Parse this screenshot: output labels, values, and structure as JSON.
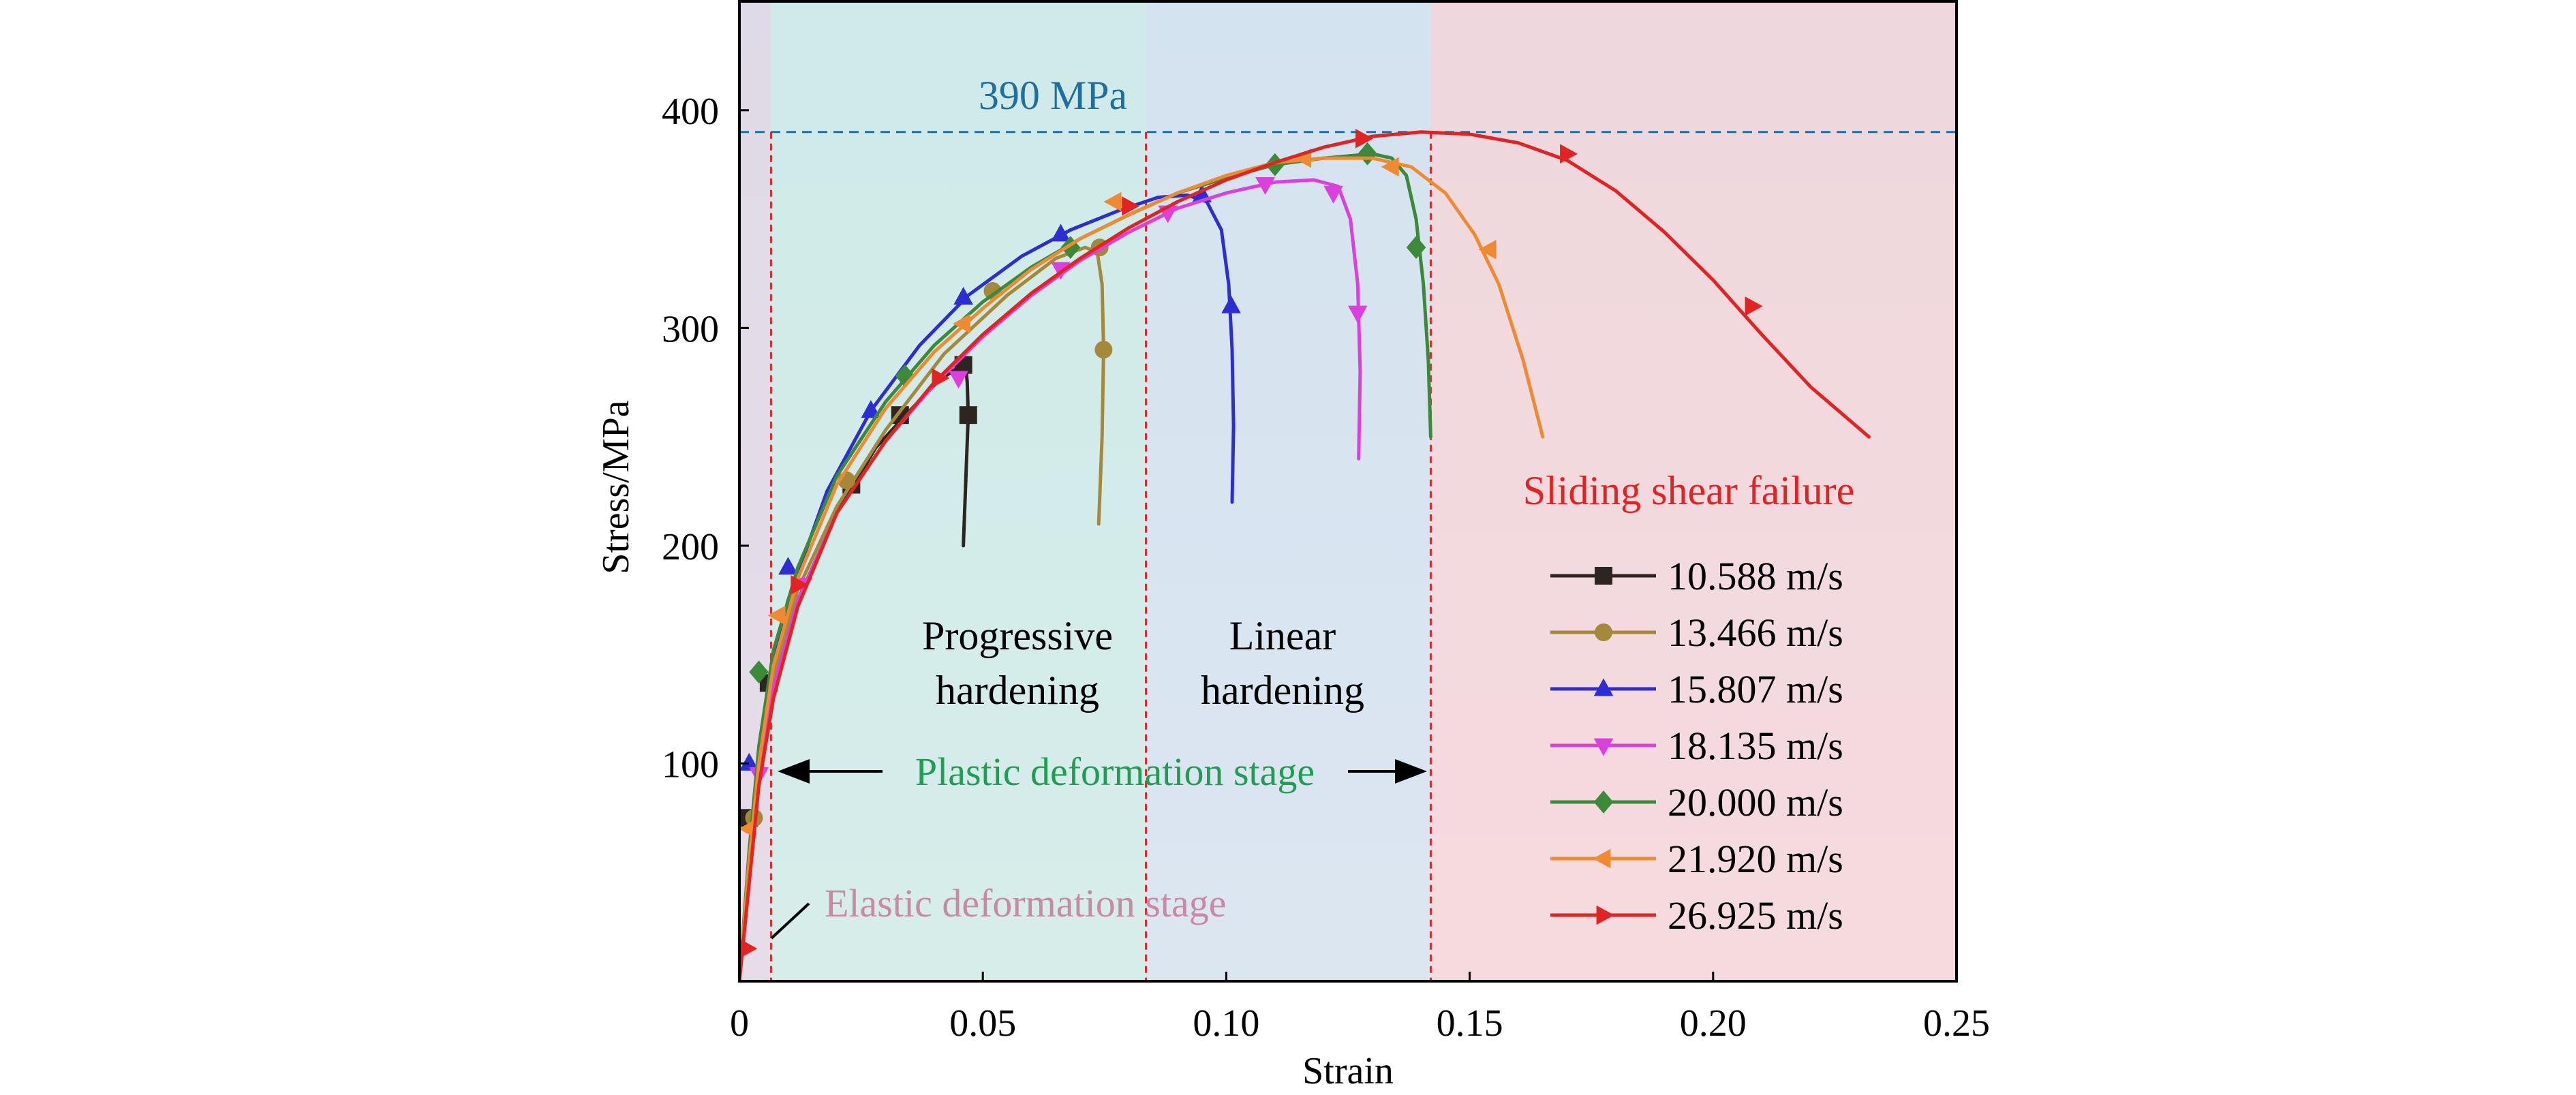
{
  "chart_data": {
    "type": "line",
    "xlabel": "Strain",
    "ylabel": "Stress/MPa",
    "xlim": [
      0,
      0.25
    ],
    "ylim": [
      0,
      450
    ],
    "x_ticks": [
      {
        "value": 0,
        "label": "0"
      },
      {
        "value": 0.05,
        "label": "0.05"
      },
      {
        "value": 0.1,
        "label": "0.10"
      },
      {
        "value": 0.15,
        "label": "0.15"
      },
      {
        "value": 0.2,
        "label": "0.20"
      },
      {
        "value": 0.25,
        "label": "0.25"
      }
    ],
    "y_ticks": [
      {
        "value": 100,
        "label": "100"
      },
      {
        "value": 200,
        "label": "200"
      },
      {
        "value": 300,
        "label": "300"
      },
      {
        "value": 400,
        "label": "400"
      }
    ],
    "grid": false,
    "legend_position": "bottom-right",
    "reference_line": {
      "y": 390,
      "label": "390 MPa",
      "color": "#1f6f9e"
    },
    "stage_boundaries": [
      0.0065,
      0.0835,
      0.142
    ],
    "regions": [
      {
        "x_range": [
          0,
          0.0065
        ],
        "color": "#e6d8e4",
        "label": "Elastic deformation stage",
        "label_color": "#c88aa3"
      },
      {
        "x_range": [
          0.0065,
          0.0835
        ],
        "color": "#d3ebe6",
        "label": "Progressive hardening",
        "label_color": "#000000"
      },
      {
        "x_range": [
          0.0835,
          0.142
        ],
        "color": "#d9e3ef",
        "label": "Linear hardening",
        "label_color": "#000000"
      },
      {
        "x_range": [
          0.142,
          0.25
        ],
        "color": "#f8d6d8",
        "label": "Sliding shear failure",
        "label_color": "#e32222"
      }
    ],
    "plastic_stage": {
      "label": "Plastic deformation stage",
      "x_range": [
        0.0065,
        0.142
      ],
      "color": "#1e9e50"
    },
    "series": [
      {
        "name": "10.588 m/s",
        "color": "#2d2520",
        "marker": "square",
        "x": [
          0,
          0.002,
          0.004,
          0.007,
          0.012,
          0.02,
          0.028,
          0.035,
          0.041,
          0.045,
          0.0465,
          0.0468,
          0.047,
          0.0465,
          0.046
        ],
        "y": [
          0,
          50,
          95,
          135,
          175,
          215,
          245,
          262,
          276,
          282,
          283,
          275,
          260,
          230,
          200
        ],
        "markers": [
          [
            0.002,
            75
          ],
          [
            0.006,
            137
          ],
          [
            0.023,
            228
          ],
          [
            0.033,
            260
          ],
          [
            0.046,
            283
          ],
          [
            0.047,
            260
          ]
        ]
      },
      {
        "name": "13.466 m/s",
        "color": "#a4893a",
        "marker": "circle",
        "x": [
          0,
          0.002,
          0.004,
          0.007,
          0.012,
          0.02,
          0.03,
          0.042,
          0.055,
          0.065,
          0.071,
          0.0735,
          0.0745,
          0.0748,
          0.0745,
          0.0738
        ],
        "y": [
          0,
          55,
          100,
          140,
          180,
          218,
          253,
          288,
          315,
          332,
          337,
          335,
          320,
          290,
          250,
          210
        ],
        "markers": [
          [
            0.003,
            75
          ],
          [
            0.022,
            230
          ],
          [
            0.052,
            317
          ],
          [
            0.074,
            337
          ],
          [
            0.0748,
            290
          ]
        ]
      },
      {
        "name": "15.807 m/s",
        "color": "#2d2dd6",
        "marker": "triangle-up",
        "x": [
          0,
          0.002,
          0.004,
          0.007,
          0.01,
          0.018,
          0.027,
          0.037,
          0.047,
          0.058,
          0.068,
          0.078,
          0.086,
          0.092,
          0.096,
          0.099,
          0.1005,
          0.1012,
          0.1015,
          0.1012
        ],
        "y": [
          0,
          55,
          100,
          145,
          175,
          225,
          262,
          292,
          315,
          333,
          345,
          354,
          360,
          361,
          358,
          345,
          320,
          290,
          255,
          220
        ],
        "markers": [
          [
            0.002,
            100
          ],
          [
            0.01,
            190
          ],
          [
            0.027,
            262
          ],
          [
            0.046,
            314
          ],
          [
            0.066,
            343
          ],
          [
            0.095,
            361
          ],
          [
            0.101,
            310
          ]
        ]
      },
      {
        "name": "18.135 m/s",
        "color": "#dd3fdd",
        "marker": "triangle-down",
        "x": [
          0,
          0.002,
          0.004,
          0.007,
          0.012,
          0.02,
          0.03,
          0.04,
          0.05,
          0.06,
          0.07,
          0.08,
          0.09,
          0.1,
          0.11,
          0.118,
          0.123,
          0.1255,
          0.127,
          0.1275,
          0.1272
        ],
        "y": [
          0,
          50,
          95,
          135,
          175,
          215,
          248,
          274,
          296,
          315,
          331,
          344,
          355,
          362,
          367,
          368,
          365,
          350,
          320,
          280,
          240
        ],
        "markers": [
          [
            0.004,
            95
          ],
          [
            0.013,
            182
          ],
          [
            0.045,
            277
          ],
          [
            0.066,
            327
          ],
          [
            0.088,
            353
          ],
          [
            0.108,
            366
          ],
          [
            0.122,
            362
          ],
          [
            0.127,
            307
          ]
        ]
      },
      {
        "name": "20.000 m/s",
        "color": "#3a8a3a",
        "marker": "diamond",
        "x": [
          0,
          0.002,
          0.004,
          0.007,
          0.012,
          0.02,
          0.03,
          0.04,
          0.05,
          0.06,
          0.07,
          0.08,
          0.09,
          0.1,
          0.11,
          0.12,
          0.13,
          0.134,
          0.137,
          0.139,
          0.1405,
          0.1415,
          0.142
        ],
        "y": [
          0,
          60,
          108,
          152,
          190,
          232,
          266,
          292,
          312,
          328,
          341,
          352,
          362,
          369,
          375,
          378,
          380,
          378,
          370,
          350,
          320,
          285,
          250
        ],
        "markers": [
          [
            0.004,
            142
          ],
          [
            0.034,
            278
          ],
          [
            0.068,
            337
          ],
          [
            0.11,
            375
          ],
          [
            0.129,
            380
          ],
          [
            0.139,
            337
          ]
        ]
      },
      {
        "name": "21.920 m/s",
        "color": "#f08a30",
        "marker": "triangle-left",
        "x": [
          0,
          0.002,
          0.004,
          0.007,
          0.012,
          0.02,
          0.03,
          0.04,
          0.05,
          0.06,
          0.07,
          0.08,
          0.09,
          0.1,
          0.11,
          0.12,
          0.13,
          0.138,
          0.145,
          0.151,
          0.156,
          0.161,
          0.165
        ],
        "y": [
          0,
          55,
          100,
          145,
          185,
          228,
          263,
          289,
          309,
          327,
          341,
          352,
          362,
          370,
          376,
          378,
          378,
          374,
          362,
          343,
          320,
          285,
          250
        ],
        "markers": [
          [
            0.002,
            70
          ],
          [
            0.008,
            168
          ],
          [
            0.046,
            302
          ],
          [
            0.077,
            358
          ],
          [
            0.116,
            378
          ],
          [
            0.134,
            374
          ],
          [
            0.154,
            336
          ]
        ]
      },
      {
        "name": "26.925 m/s",
        "color": "#e32222",
        "marker": "triangle-right",
        "x": [
          0,
          0.002,
          0.004,
          0.007,
          0.012,
          0.02,
          0.03,
          0.04,
          0.05,
          0.06,
          0.07,
          0.08,
          0.09,
          0.1,
          0.11,
          0.12,
          0.13,
          0.14,
          0.15,
          0.16,
          0.17,
          0.18,
          0.19,
          0.2,
          0.21,
          0.22,
          0.232
        ],
        "y": [
          0,
          45,
          90,
          130,
          172,
          215,
          248,
          275,
          297,
          316,
          332,
          346,
          358,
          368,
          376,
          383,
          388,
          390,
          389,
          385,
          377,
          363,
          344,
          322,
          297,
          273,
          250
        ],
        "markers": [
          [
            0.0015,
            15
          ],
          [
            0.012,
            182
          ],
          [
            0.041,
            277
          ],
          [
            0.08,
            356
          ],
          [
            0.128,
            387
          ],
          [
            0.17,
            380
          ],
          [
            0.208,
            310
          ]
        ]
      }
    ]
  },
  "labels": {
    "elastic": "Elastic deformation stage",
    "progressive_line1": "Progressive",
    "progressive_line2": "hardening",
    "linear_line1": "Linear",
    "linear_line2": "hardening",
    "failure": "Sliding shear failure",
    "plastic": "Plastic deformation stage",
    "ref": "390 MPa"
  }
}
